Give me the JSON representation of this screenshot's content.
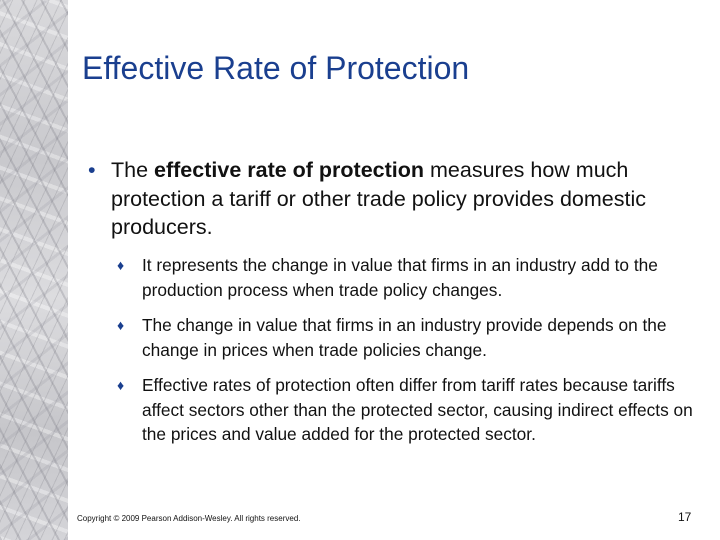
{
  "slide": {
    "title": "Effective Rate of Protection",
    "main_bullet": {
      "symbol": "•",
      "lead": "The ",
      "bold": "effective rate of protection",
      "rest": " measures how much protection a tariff or other trade policy provides domestic producers."
    },
    "sub_bullets": [
      {
        "symbol": "♦",
        "text": "It represents the change in value that firms in an industry add to the production process when trade policy changes."
      },
      {
        "symbol": "♦",
        "text": "The change in value that firms in an industry provide depends on the change in prices when trade policies change."
      },
      {
        "symbol": "♦",
        "text": "Effective rates of protection often differ from tariff rates because tariffs affect sectors other than the protected sector, causing indirect effects on the prices and value added for the protected sector."
      }
    ],
    "footer": {
      "copyright": "Copyright © 2009 Pearson Addison-Wesley. All rights reserved.",
      "page_number": "17"
    },
    "colors": {
      "title": "#1a3f8f",
      "text": "#111111"
    }
  }
}
